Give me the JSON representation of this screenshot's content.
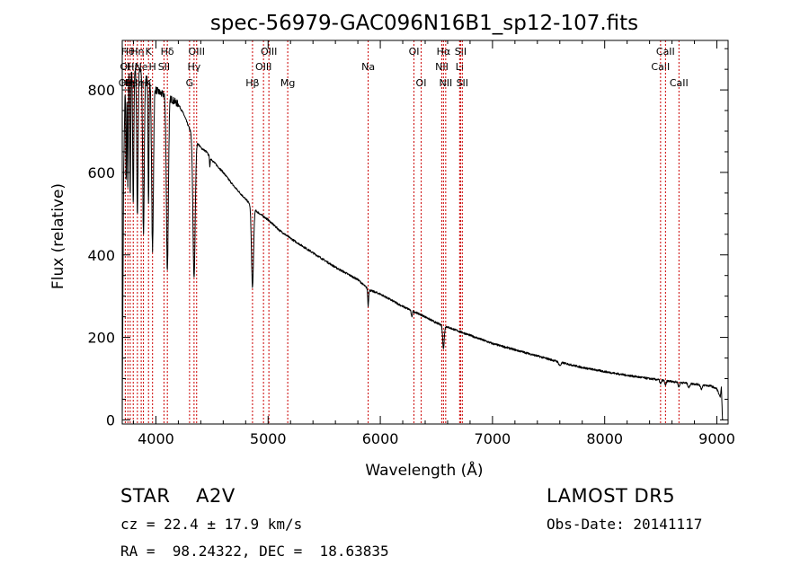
{
  "chart_data": {
    "type": "line",
    "title": "spec-56979-GAC096N16B1_sp12-107.fits",
    "xlabel": "Wavelength (Å)",
    "ylabel": "Flux (relative)",
    "xlim": [
      3700,
      9100
    ],
    "ylim": [
      -10,
      920
    ],
    "xticks": [
      4000,
      5000,
      6000,
      7000,
      8000,
      9000
    ],
    "yticks": [
      0,
      200,
      400,
      600,
      800
    ],
    "grid": false,
    "colors": {
      "spectrum": "#000000",
      "lines": "#cc0000"
    },
    "continuum": [
      [
        3700,
        0
      ],
      [
        3712,
        590
      ],
      [
        3730,
        880
      ],
      [
        3760,
        860
      ],
      [
        3800,
        850
      ],
      [
        3850,
        850
      ],
      [
        3900,
        830
      ],
      [
        3950,
        820
      ],
      [
        4000,
        800
      ],
      [
        4050,
        790
      ],
      [
        4100,
        788
      ],
      [
        4150,
        775
      ],
      [
        4200,
        765
      ],
      [
        4250,
        740
      ],
      [
        4300,
        705
      ],
      [
        4350,
        680
      ],
      [
        4400,
        660
      ],
      [
        4450,
        650
      ],
      [
        4500,
        630
      ],
      [
        4600,
        600
      ],
      [
        4700,
        565
      ],
      [
        4800,
        535
      ],
      [
        4900,
        505
      ],
      [
        5000,
        485
      ],
      [
        5100,
        460
      ],
      [
        5200,
        440
      ],
      [
        5400,
        405
      ],
      [
        5600,
        370
      ],
      [
        5800,
        340
      ],
      [
        5900,
        315
      ],
      [
        6000,
        305
      ],
      [
        6200,
        275
      ],
      [
        6400,
        250
      ],
      [
        6500,
        235
      ],
      [
        6600,
        225
      ],
      [
        6800,
        205
      ],
      [
        7000,
        185
      ],
      [
        7200,
        170
      ],
      [
        7400,
        155
      ],
      [
        7600,
        140
      ],
      [
        7800,
        127
      ],
      [
        8000,
        117
      ],
      [
        8200,
        108
      ],
      [
        8400,
        100
      ],
      [
        8600,
        93
      ],
      [
        8800,
        87
      ],
      [
        8950,
        82
      ],
      [
        9000,
        75
      ],
      [
        9030,
        55
      ],
      [
        9040,
        80
      ],
      [
        9050,
        0
      ],
      [
        9100,
        0
      ]
    ],
    "absorption": [
      {
        "wl": 3735,
        "depth": 300,
        "width": 4
      },
      {
        "wl": 3750,
        "depth": 300,
        "width": 4
      },
      {
        "wl": 3771,
        "depth": 320,
        "width": 4
      },
      {
        "wl": 3798,
        "depth": 330,
        "width": 5
      },
      {
        "wl": 3835,
        "depth": 350,
        "width": 6
      },
      {
        "wl": 3889,
        "depth": 380,
        "width": 7
      },
      {
        "wl": 3934,
        "depth": 300,
        "width": 4
      },
      {
        "wl": 3970,
        "depth": 400,
        "width": 8
      },
      {
        "wl": 4102,
        "depth": 420,
        "width": 9
      },
      {
        "wl": 4340,
        "depth": 340,
        "width": 10
      },
      {
        "wl": 4481,
        "depth": 25,
        "width": 3
      },
      {
        "wl": 4861,
        "depth": 195,
        "width": 9
      },
      {
        "wl": 5892,
        "depth": 40,
        "width": 4
      },
      {
        "wl": 6280,
        "depth": 15,
        "width": 5
      },
      {
        "wl": 6563,
        "depth": 55,
        "width": 7
      },
      {
        "wl": 7600,
        "depth": 8,
        "width": 10
      },
      {
        "wl": 8498,
        "depth": 10,
        "width": 6
      },
      {
        "wl": 8542,
        "depth": 12,
        "width": 6
      },
      {
        "wl": 8662,
        "depth": 12,
        "width": 6
      },
      {
        "wl": 8750,
        "depth": 10,
        "width": 8
      },
      {
        "wl": 8863,
        "depth": 10,
        "width": 8
      }
    ],
    "line_markers": [
      {
        "wl": 3727,
        "labels": [
          "",
          "OI",
          "OII"
        ]
      },
      {
        "wl": 3750,
        "labels": [
          "Hθ",
          "",
          "Hη"
        ]
      },
      {
        "wl": 3771,
        "labels": [
          "",
          "",
          "Hι"
        ]
      },
      {
        "wl": 3798,
        "labels": [
          "",
          "Hε",
          ""
        ]
      },
      {
        "wl": 3835,
        "labels": [
          "Hη",
          "",
          "Hη"
        ]
      },
      {
        "wl": 3869,
        "labels": [
          "",
          "Ne",
          ""
        ]
      },
      {
        "wl": 3889,
        "labels": [
          "",
          "",
          "H"
        ]
      },
      {
        "wl": 3934,
        "labels": [
          "K",
          "",
          "K"
        ]
      },
      {
        "wl": 3970,
        "labels": [
          "",
          "H",
          ""
        ]
      },
      {
        "wl": 4072,
        "labels": [
          "",
          "SII",
          ""
        ]
      },
      {
        "wl": 4102,
        "labels": [
          "Hδ",
          "",
          ""
        ]
      },
      {
        "wl": 4300,
        "labels": [
          "",
          "",
          "G"
        ]
      },
      {
        "wl": 4340,
        "labels": [
          "",
          "Hγ",
          ""
        ]
      },
      {
        "wl": 4363,
        "labels": [
          "OIII",
          "",
          ""
        ]
      },
      {
        "wl": 4861,
        "labels": [
          "",
          "",
          "Hβ"
        ]
      },
      {
        "wl": 4959,
        "labels": [
          "",
          "OIII",
          ""
        ]
      },
      {
        "wl": 5007,
        "labels": [
          "OIII",
          "",
          ""
        ]
      },
      {
        "wl": 5175,
        "labels": [
          "",
          "",
          "Mg"
        ]
      },
      {
        "wl": 5892,
        "labels": [
          "",
          "Na",
          ""
        ]
      },
      {
        "wl": 6300,
        "labels": [
          "OI",
          "",
          ""
        ]
      },
      {
        "wl": 6364,
        "labels": [
          "",
          "",
          "OI"
        ]
      },
      {
        "wl": 6548,
        "labels": [
          "",
          "NII",
          ""
        ]
      },
      {
        "wl": 6563,
        "labels": [
          "Hα",
          "",
          ""
        ]
      },
      {
        "wl": 6583,
        "labels": [
          "",
          "",
          "NII"
        ]
      },
      {
        "wl": 6707,
        "labels": [
          "",
          "Li",
          ""
        ]
      },
      {
        "wl": 6716,
        "labels": [
          "SII",
          "",
          ""
        ]
      },
      {
        "wl": 6731,
        "labels": [
          "",
          "",
          "SII"
        ]
      },
      {
        "wl": 8498,
        "labels": [
          "",
          "CaII",
          ""
        ]
      },
      {
        "wl": 8542,
        "labels": [
          "CaII",
          "",
          ""
        ]
      },
      {
        "wl": 8662,
        "labels": [
          "",
          "",
          "CaII"
        ]
      }
    ]
  },
  "info": {
    "star_line": "STAR    A2V",
    "cz_line": "cz = 22.4 ± 17.9 km/s",
    "radec_line": "RA =  98.24322, DEC =  18.63835",
    "survey": "LAMOST DR5",
    "obs_date": "Obs-Date: 20141117"
  }
}
